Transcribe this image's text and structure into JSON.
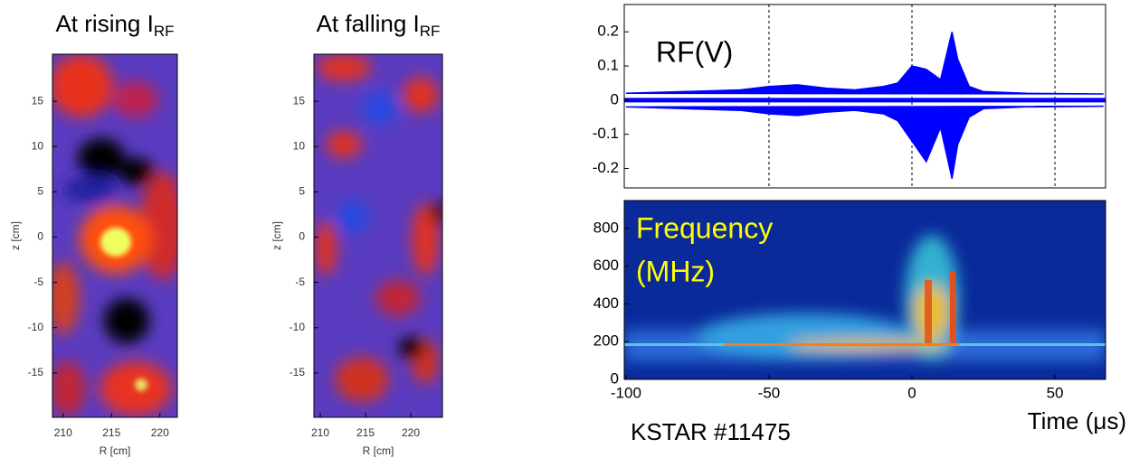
{
  "chart_data": [
    {
      "type": "heatmap",
      "title": "At rising I",
      "title_sub": "RF",
      "xlabel": "R [cm]",
      "ylabel": "z [cm]",
      "xlim": [
        208.9,
        221.8
      ],
      "ylim": [
        -19.9,
        20.2
      ],
      "xticks": [
        210,
        215,
        220
      ],
      "yticks": [
        -15,
        -10,
        -5,
        0,
        5,
        10,
        15
      ]
    },
    {
      "type": "heatmap",
      "title": "At falling I",
      "title_sub": "RF",
      "xlabel": "R [cm]",
      "ylabel": "z [cm]",
      "xlim": [
        209.3,
        223.5
      ],
      "ylim": [
        -19.9,
        20.2
      ],
      "xticks": [
        210,
        215,
        220
      ],
      "yticks": [
        -15,
        -10,
        -5,
        0,
        5,
        10,
        15
      ]
    },
    {
      "type": "line",
      "label": "RF(V)",
      "xlim": [
        -100.6,
        67.7
      ],
      "ylim": [
        -0.257,
        0.28
      ],
      "yticks": [
        -0.2,
        -0.1,
        0,
        0.1,
        0.2
      ],
      "xgrid": [
        -50,
        0,
        50
      ],
      "x": [
        -100,
        -80,
        -60,
        -50,
        -40,
        -30,
        -20,
        -10,
        -5,
        0,
        5,
        10,
        14,
        16,
        20,
        25,
        40,
        67
      ],
      "series": [
        {
          "color": "#0000ff",
          "values": [
            0.02,
            0.025,
            0.03,
            0.04,
            0.045,
            0.035,
            0.03,
            0.04,
            0.05,
            0.1,
            0.09,
            0.06,
            0.2,
            0.12,
            0.04,
            0.025,
            0.02,
            0.018
          ]
        },
        {
          "color": "#0000ff",
          "values": [
            -0.02,
            -0.025,
            -0.03,
            -0.04,
            -0.045,
            -0.035,
            -0.03,
            -0.04,
            -0.06,
            -0.12,
            -0.18,
            -0.08,
            -0.23,
            -0.13,
            -0.05,
            -0.025,
            -0.02,
            -0.018
          ]
        }
      ]
    },
    {
      "type": "spectrogram",
      "label_lines": [
        "Frequency",
        "(MHz)"
      ],
      "xlabel": "Time (μs)",
      "note": "KSTAR #11475",
      "xlim": [
        -100.6,
        67.7
      ],
      "ylim": [
        0,
        948
      ],
      "xticks": [
        -100,
        -50,
        0,
        50
      ],
      "yticks": [
        0,
        200,
        400,
        600,
        800
      ]
    }
  ]
}
